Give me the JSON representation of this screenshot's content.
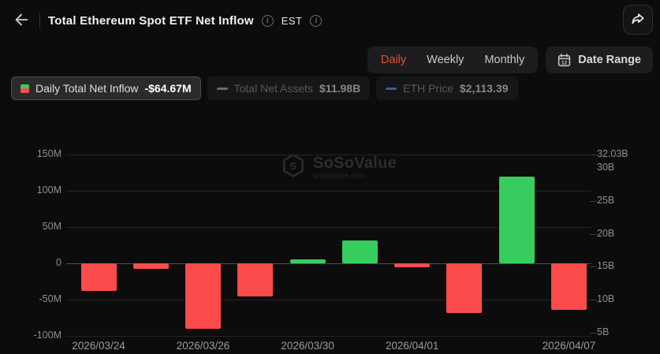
{
  "header": {
    "title": "Total Ethereum Spot ETF Net Inflow",
    "timezone_label": "EST"
  },
  "toolbar": {
    "tabs": [
      {
        "label": "Daily",
        "active": true
      },
      {
        "label": "Weekly",
        "active": false
      },
      {
        "label": "Monthly",
        "active": false
      }
    ],
    "date_range_label": "Date Range",
    "calendar_icon_day": "12"
  },
  "legend": {
    "items": [
      {
        "label": "Daily Total Net Inflow",
        "value": "-$64.67M",
        "active": true,
        "marker": "green-red-split-square",
        "marker_colors": [
          "#36cc5e",
          "#fb4b4b"
        ]
      },
      {
        "label": "Total Net Assets",
        "value": "$11.98B",
        "active": false,
        "marker": "dash",
        "marker_color": "#6b6b6b"
      },
      {
        "label": "ETH Price",
        "value": "$2,113.39",
        "active": false,
        "marker": "dash",
        "marker_color": "#44539f"
      }
    ]
  },
  "watermark": {
    "brand": "SoSoValue",
    "domain": "sosovalue.com"
  },
  "chart_data": {
    "type": "bar",
    "title": "Total Ethereum Spot ETF Net Inflow (Daily)",
    "unit": "USD",
    "points": [
      {
        "date": "2026/03/24",
        "value_musd": -38
      },
      {
        "date": "2026/03/25",
        "value_musd": -8
      },
      {
        "date": "2026/03/26",
        "value_musd": -90
      },
      {
        "date": "2026/03/27",
        "value_musd": -46
      },
      {
        "date": "2026/03/30",
        "value_musd": 5
      },
      {
        "date": "2026/03/31",
        "value_musd": 32
      },
      {
        "date": "2026/04/01",
        "value_musd": -5
      },
      {
        "date": "2026/04/02",
        "value_musd": -68
      },
      {
        "date": "2026/04/06",
        "value_musd": 120
      },
      {
        "date": "2026/04/07",
        "value_musd": -64.67
      }
    ],
    "x_ticks": [
      {
        "index": 0,
        "label": "2026/03/24"
      },
      {
        "index": 2,
        "label": "2026/03/26"
      },
      {
        "index": 4,
        "label": "2026/03/30"
      },
      {
        "index": 6,
        "label": "2026/04/01"
      },
      {
        "index": 9,
        "label": "2026/04/07"
      }
    ],
    "left_axis": {
      "unit": "M (USD)",
      "tick_labels": [
        "150M",
        "100M",
        "50M",
        "0",
        "-50M",
        "-100M"
      ],
      "tick_values": [
        150,
        100,
        50,
        0,
        -50,
        -100
      ],
      "range": [
        -100,
        150
      ]
    },
    "right_axis": {
      "unit": "B (USD)",
      "tick_labels": [
        "32.03B",
        "30B",
        "25B",
        "20B",
        "15B",
        "10B",
        "5B"
      ],
      "tick_values": [
        32.03,
        30,
        25,
        20,
        15,
        10,
        5
      ],
      "max": 32.03
    },
    "grid": true,
    "legend_position": "top-left",
    "colors": {
      "positive_bar": "#36cc5e",
      "negative_bar": "#fb4b4b"
    }
  },
  "colors": {
    "background": "#0c0c0c",
    "panel": "#1d1d1f",
    "active_tab_text": "#e14f37"
  }
}
